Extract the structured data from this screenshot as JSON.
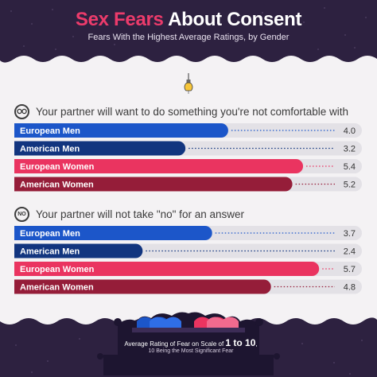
{
  "header": {
    "title_accent": "Sex Fears",
    "title_rest": "About Consent",
    "subtitle": "Fears With the Highest Average Ratings, by Gender"
  },
  "colors": {
    "background_dark": "#2d2140",
    "european_men": "#1c56c9",
    "american_men": "#12357f",
    "european_women": "#ea3460",
    "american_women": "#951d39",
    "track": "#e3e1e6"
  },
  "icons": [
    "lightbulb-icon",
    "handcuffs-icon",
    "no-sign-icon",
    "bed-hearts-icon"
  ],
  "chart_data": [
    {
      "type": "bar",
      "orientation": "horizontal",
      "title": "Your partner will want to do something you're not comfortable with",
      "icon": "handcuffs-icon",
      "categories": [
        "European Men",
        "American Men",
        "European Women",
        "American Women"
      ],
      "values": [
        4.0,
        3.2,
        5.4,
        5.2
      ],
      "value_labels": [
        "4.0",
        "3.2",
        "5.4",
        "5.2"
      ],
      "colors": [
        "#1c56c9",
        "#12357f",
        "#ea3460",
        "#951d39"
      ],
      "xlim": [
        0,
        6.5
      ]
    },
    {
      "type": "bar",
      "orientation": "horizontal",
      "title": "Your partner will not take \"no\" for an answer",
      "icon": "no-sign-icon",
      "icon_text": "NO",
      "categories": [
        "European Men",
        "American Men",
        "European Women",
        "American Women"
      ],
      "values": [
        3.7,
        2.4,
        5.7,
        4.8
      ],
      "value_labels": [
        "3.7",
        "2.4",
        "5.7",
        "4.8"
      ],
      "colors": [
        "#1c56c9",
        "#12357f",
        "#ea3460",
        "#951d39"
      ],
      "xlim": [
        0,
        6.5
      ]
    }
  ],
  "footer": {
    "line1_prefix": "Average Rating of Fear on Scale of ",
    "line1_bold": "1 to 10",
    "line1_suffix": ",",
    "line2": "10 Being the Most Significant Fear"
  }
}
